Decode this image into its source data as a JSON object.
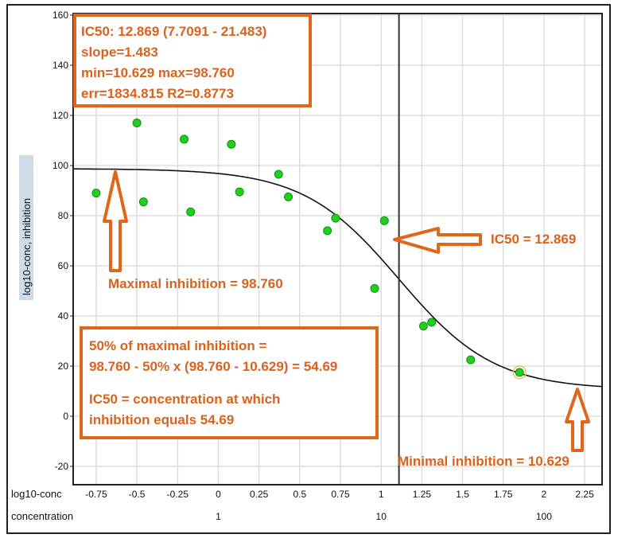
{
  "chart_data": {
    "type": "scatter",
    "ylabel": "log10-conc, inhibition",
    "x_row_labels": [
      "log10-conc",
      "concentration"
    ],
    "xlim": [
      -0.9,
      2.37
    ],
    "ylim": [
      -28,
      160
    ],
    "x_ticks": [
      -0.75,
      -0.5,
      -0.25,
      0,
      0.25,
      0.5,
      0.75,
      1,
      1.25,
      1.5,
      1.75,
      2,
      2.25
    ],
    "x_tick_labels": [
      "-0.75",
      "-0.5",
      "-0.25",
      "0",
      "0.25",
      "0.5",
      "0.75",
      "1",
      "1.25",
      "1.5",
      "1.75",
      "2",
      "2.25"
    ],
    "concentration_ticks": [
      {
        "x": 0,
        "label": "1"
      },
      {
        "x": 1,
        "label": "10"
      },
      {
        "x": 2,
        "label": "100"
      }
    ],
    "y_ticks": [
      -20,
      0,
      20,
      40,
      60,
      80,
      100,
      120,
      140,
      160
    ],
    "y_tick_labels": [
      "-20",
      "0",
      "20",
      "40",
      "60",
      "80",
      "100",
      "120",
      "140",
      "160"
    ],
    "grid": true,
    "points": [
      {
        "x": -0.75,
        "y": 89
      },
      {
        "x": -0.5,
        "y": 117
      },
      {
        "x": -0.46,
        "y": 85.5
      },
      {
        "x": -0.21,
        "y": 110.5
      },
      {
        "x": -0.17,
        "y": 81.5
      },
      {
        "x": 0.08,
        "y": 108.5
      },
      {
        "x": 0.13,
        "y": 89.5
      },
      {
        "x": 0.37,
        "y": 96.5
      },
      {
        "x": 0.43,
        "y": 87.5
      },
      {
        "x": 0.67,
        "y": 74
      },
      {
        "x": 0.72,
        "y": 79
      },
      {
        "x": 0.96,
        "y": 51
      },
      {
        "x": 1.02,
        "y": 78
      },
      {
        "x": 1.26,
        "y": 36
      },
      {
        "x": 1.31,
        "y": 37.5
      },
      {
        "x": 1.55,
        "y": 22.5
      },
      {
        "x": 1.85,
        "y": 17.5,
        "highlighted": true
      }
    ],
    "fit": {
      "model": "4PL",
      "ic50": 12.869,
      "slope": 1.483,
      "min": 10.629,
      "max": 98.76
    },
    "ic50_line_x": 1.1095,
    "point_color": "#1fd01f",
    "accent_color": "#e0661c"
  },
  "annotations": {
    "stats_box": [
      "IC50: 12.869 (7.7091 - 21.483)",
      "slope=1.483",
      "min=10.629 max=98.760",
      "err=1834.815 R2=0.8773"
    ],
    "max_label": "Maximal inhibition = 98.760",
    "ic50_label": "IC50 = 12.869",
    "min_label": "Minimal inhibition = 10.629",
    "explain_box": [
      "50% of maximal inhibition =",
      "98.760 - 50% x (98.760 - 10.629) = 54.69",
      "",
      "IC50 = concentration at which",
      "inhibition equals 54.69"
    ]
  }
}
